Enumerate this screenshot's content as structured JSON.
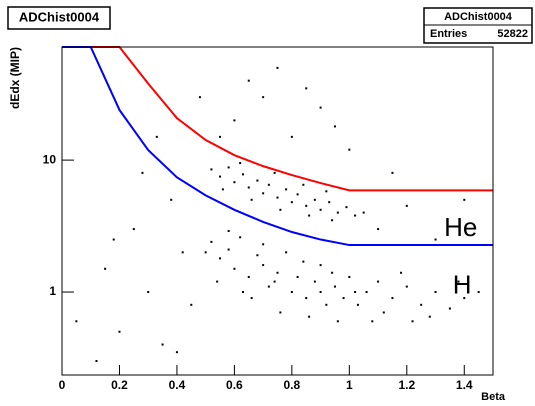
{
  "chart_data": {
    "type": "scatter",
    "title": "ADChist0004",
    "stats": {
      "name": "ADChist0004",
      "entries_label": "Entries",
      "entries": 52822
    },
    "x_label": "Beta",
    "y_label": "dEdx (MIP)",
    "xlim": [
      0,
      1.5
    ],
    "ylim": [
      0.235,
      72
    ],
    "log_y": true,
    "xticks": [
      0,
      0.2,
      0.4,
      0.6,
      0.8,
      1,
      1.2,
      1.4
    ],
    "yticks": [
      1,
      10
    ],
    "annotations": [
      {
        "text": "He",
        "x": 1.33,
        "y": 3.0
      },
      {
        "text": "H",
        "x": 1.36,
        "y": 1.1
      }
    ],
    "series": [
      {
        "mode": "points",
        "color": "#000000",
        "x": [
          0.52,
          0.55,
          0.58,
          0.6,
          0.62,
          0.65,
          0.68,
          0.7,
          0.72,
          0.75,
          0.78,
          0.8,
          0.82,
          0.85,
          0.88,
          0.9,
          0.92,
          0.95,
          0.98,
          1.0,
          1.03,
          1.06,
          1.1,
          1.12,
          1.15,
          1.2,
          1.25,
          1.3,
          1.35,
          1.4,
          1.45,
          0.54,
          0.66,
          0.76,
          0.86,
          0.96,
          1.08,
          1.22,
          0.58,
          0.7,
          0.84,
          0.94,
          1.18,
          1.38,
          0.5,
          0.63,
          0.74,
          0.9,
          1.02,
          1.28
        ],
        "values": [
          2.4,
          1.8,
          2.1,
          1.5,
          2.6,
          1.3,
          1.9,
          1.6,
          1.1,
          1.4,
          2.0,
          1.0,
          1.3,
          0.9,
          1.2,
          1.6,
          0.8,
          1.1,
          0.9,
          1.3,
          0.8,
          1.0,
          1.2,
          0.7,
          0.9,
          1.1,
          0.8,
          1.0,
          0.75,
          0.9,
          1.0,
          1.2,
          0.9,
          0.7,
          0.65,
          0.6,
          0.6,
          0.6,
          2.9,
          2.3,
          1.7,
          1.4,
          1.4,
          1.2,
          2.0,
          1.0,
          1.2,
          1.0,
          1.0,
          0.65
        ]
      },
      {
        "mode": "points",
        "color": "#000000",
        "x": [
          0.52,
          0.55,
          0.58,
          0.6,
          0.63,
          0.65,
          0.68,
          0.7,
          0.72,
          0.75,
          0.78,
          0.8,
          0.82,
          0.85,
          0.88,
          0.9,
          0.93,
          0.96,
          0.99,
          1.02,
          0.56,
          0.66,
          0.76,
          0.86,
          0.94,
          0.62,
          0.74,
          0.84,
          0.92,
          1.05
        ],
        "values": [
          8.5,
          7.5,
          8.8,
          6.8,
          7.8,
          6.2,
          7.0,
          5.6,
          6.5,
          5.2,
          6.0,
          4.8,
          5.5,
          4.5,
          5.0,
          4.2,
          4.8,
          4.0,
          4.4,
          3.8,
          6.0,
          5.0,
          4.2,
          3.8,
          3.5,
          9.5,
          8.0,
          6.5,
          5.8,
          4.0
        ]
      },
      {
        "mode": "points",
        "color": "#000000",
        "x": [
          0.15,
          0.2,
          0.25,
          0.3,
          0.35,
          0.38,
          0.42,
          0.45,
          0.12,
          0.05,
          0.6,
          0.7,
          0.8,
          0.9,
          0.65,
          0.55,
          1.0,
          0.75,
          1.1,
          1.2,
          1.3,
          1.4,
          0.28,
          0.33,
          0.18,
          0.48,
          1.15,
          0.4,
          0.85,
          0.95
        ],
        "values": [
          1.5,
          0.5,
          3.0,
          1.0,
          0.4,
          5.0,
          2.0,
          0.8,
          0.3,
          0.6,
          20,
          30,
          15,
          25,
          40,
          15,
          12,
          50,
          3.0,
          4.5,
          2.5,
          5.0,
          8.0,
          15,
          2.5,
          30,
          8,
          0.35,
          35,
          18
        ]
      },
      {
        "mode": "line",
        "color": "#ff0000",
        "x": [
          0,
          0.2,
          0.3,
          0.4,
          0.5,
          0.6,
          0.7,
          0.8,
          0.9,
          1.0,
          1.5
        ],
        "values": [
          72,
          72,
          38,
          20.8,
          14.2,
          10.9,
          9,
          7.7,
          6.7,
          5.9,
          5.9
        ]
      },
      {
        "mode": "line",
        "color": "#0000ff",
        "x": [
          0,
          0.1,
          0.2,
          0.3,
          0.4,
          0.5,
          0.6,
          0.7,
          0.8,
          0.9,
          1.0,
          1.5
        ],
        "values": [
          72,
          72,
          24,
          11.9,
          7.4,
          5.4,
          4.2,
          3.4,
          2.85,
          2.5,
          2.27,
          2.27
        ]
      }
    ]
  }
}
